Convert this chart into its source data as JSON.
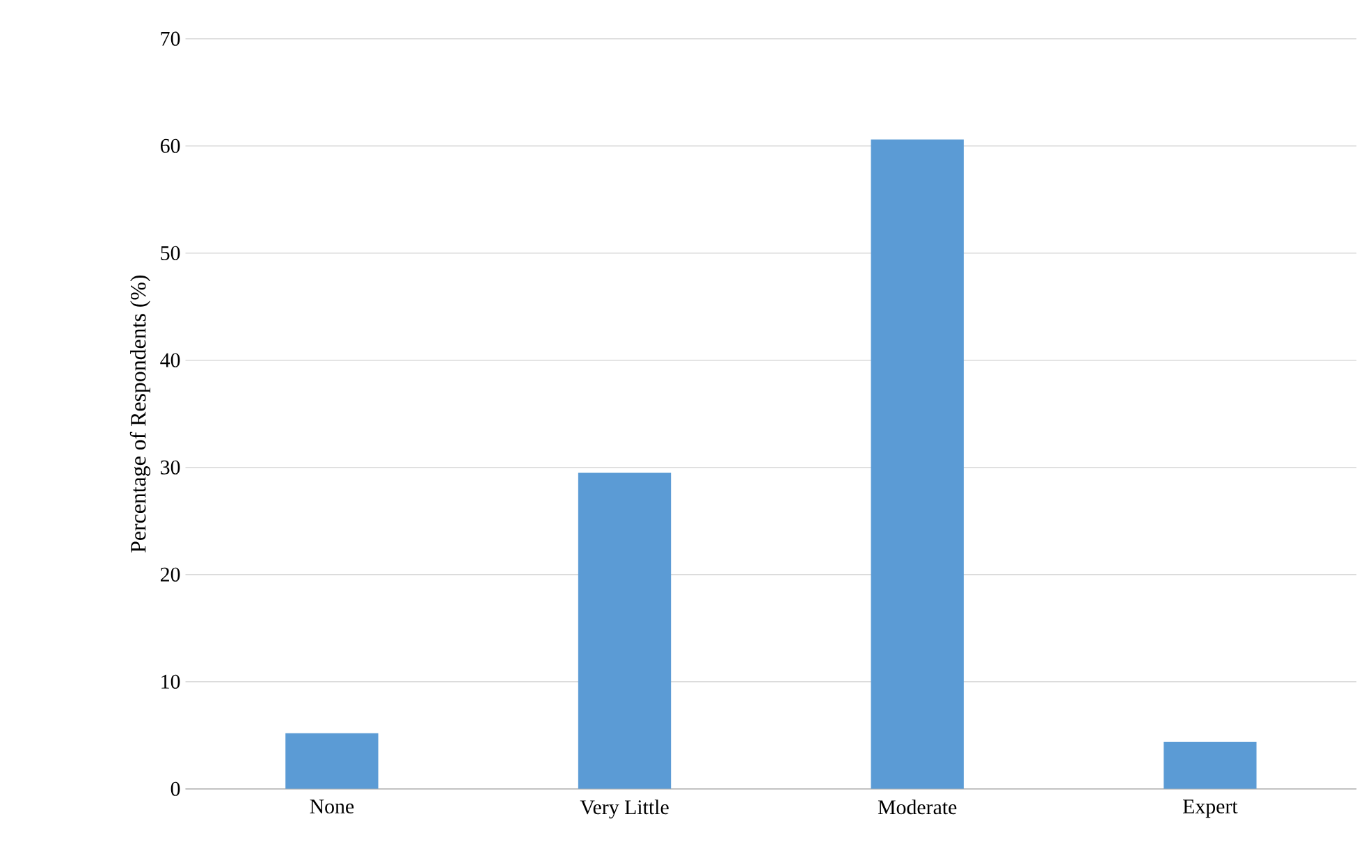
{
  "chart_data": {
    "type": "bar",
    "ylabel": "Percentage of Respondents (%)",
    "categories": [
      "None",
      "Very Little",
      "Moderate",
      "Expert"
    ],
    "values": [
      5.2,
      29.5,
      60.6,
      4.4
    ],
    "color": "#5b9bd5",
    "ylim": [
      0,
      70
    ],
    "yticks": [
      0,
      10,
      20,
      30,
      40,
      50,
      60,
      70
    ],
    "grid": "y"
  }
}
